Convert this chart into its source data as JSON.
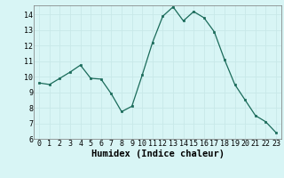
{
  "x": [
    0,
    1,
    2,
    3,
    4,
    5,
    6,
    7,
    8,
    9,
    10,
    11,
    12,
    13,
    14,
    15,
    16,
    17,
    18,
    19,
    20,
    21,
    22,
    23
  ],
  "y": [
    9.6,
    9.5,
    9.9,
    10.3,
    10.75,
    9.9,
    9.85,
    8.9,
    7.75,
    8.1,
    10.1,
    12.2,
    13.9,
    14.5,
    13.6,
    14.2,
    13.8,
    12.9,
    11.1,
    9.5,
    8.5,
    7.5,
    7.1,
    6.4
  ],
  "line_color": "#1a6b5a",
  "marker": "s",
  "marker_size": 2,
  "bg_color": "#d8f5f5",
  "grid_color": "#c8e8e8",
  "xlabel": "Humidex (Indice chaleur)",
  "ylim": [
    6,
    14.6
  ],
  "xlim": [
    -0.5,
    23.5
  ],
  "yticks": [
    6,
    7,
    8,
    9,
    10,
    11,
    12,
    13,
    14
  ],
  "xticks": [
    0,
    1,
    2,
    3,
    4,
    5,
    6,
    7,
    8,
    9,
    10,
    11,
    12,
    13,
    14,
    15,
    16,
    17,
    18,
    19,
    20,
    21,
    22,
    23
  ],
  "tick_label_fontsize": 6,
  "xlabel_fontsize": 7.5
}
